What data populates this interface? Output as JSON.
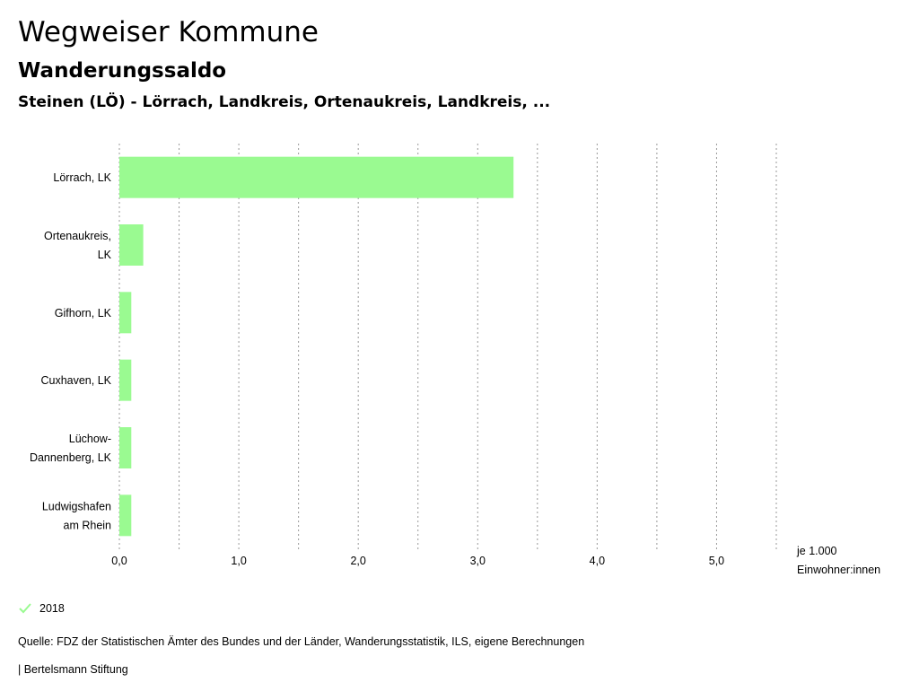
{
  "header": {
    "title": "Wegweiser Kommune",
    "subtitle": "Wanderungssaldo",
    "region": "Steinen (LÖ) - Lörrach, Landkreis, Ortenaukreis, Landkreis, ..."
  },
  "chart_data": {
    "type": "bar",
    "orientation": "horizontal",
    "categories": [
      [
        "Lörrach, LK"
      ],
      [
        "Ortenaukreis,",
        "LK"
      ],
      [
        "Gifhorn, LK"
      ],
      [
        "Cuxhaven, LK"
      ],
      [
        "Lüchow-",
        "Dannenberg, LK"
      ],
      [
        "Ludwigshafen",
        "am Rhein"
      ]
    ],
    "series": [
      {
        "name": "2018",
        "values": [
          3.3,
          0.2,
          0.1,
          0.1,
          0.1,
          0.1
        ]
      }
    ],
    "xlim": [
      0,
      5.5
    ],
    "xticks": [
      0,
      1,
      2,
      3,
      4,
      5
    ],
    "xtick_labels": [
      "0,0",
      "1,0",
      "2,0",
      "3,0",
      "4,0",
      "5,0"
    ],
    "grid_values": [
      0,
      0.5,
      1,
      1.5,
      2,
      2.5,
      3,
      3.5,
      4,
      4.5,
      5,
      5.5
    ],
    "unit_label": [
      "je 1.000",
      "Einwohner:innen"
    ],
    "bar_color": "#9afa91",
    "grid_color": "#999999"
  },
  "legend": {
    "label": "2018",
    "color": "#9afa91"
  },
  "footer": {
    "source": "Quelle: FDZ der Statistischen Ämter des Bundes und der Länder, Wanderungsstatistik, ILS, eigene Berechnungen",
    "credit": "| Bertelsmann Stiftung"
  }
}
